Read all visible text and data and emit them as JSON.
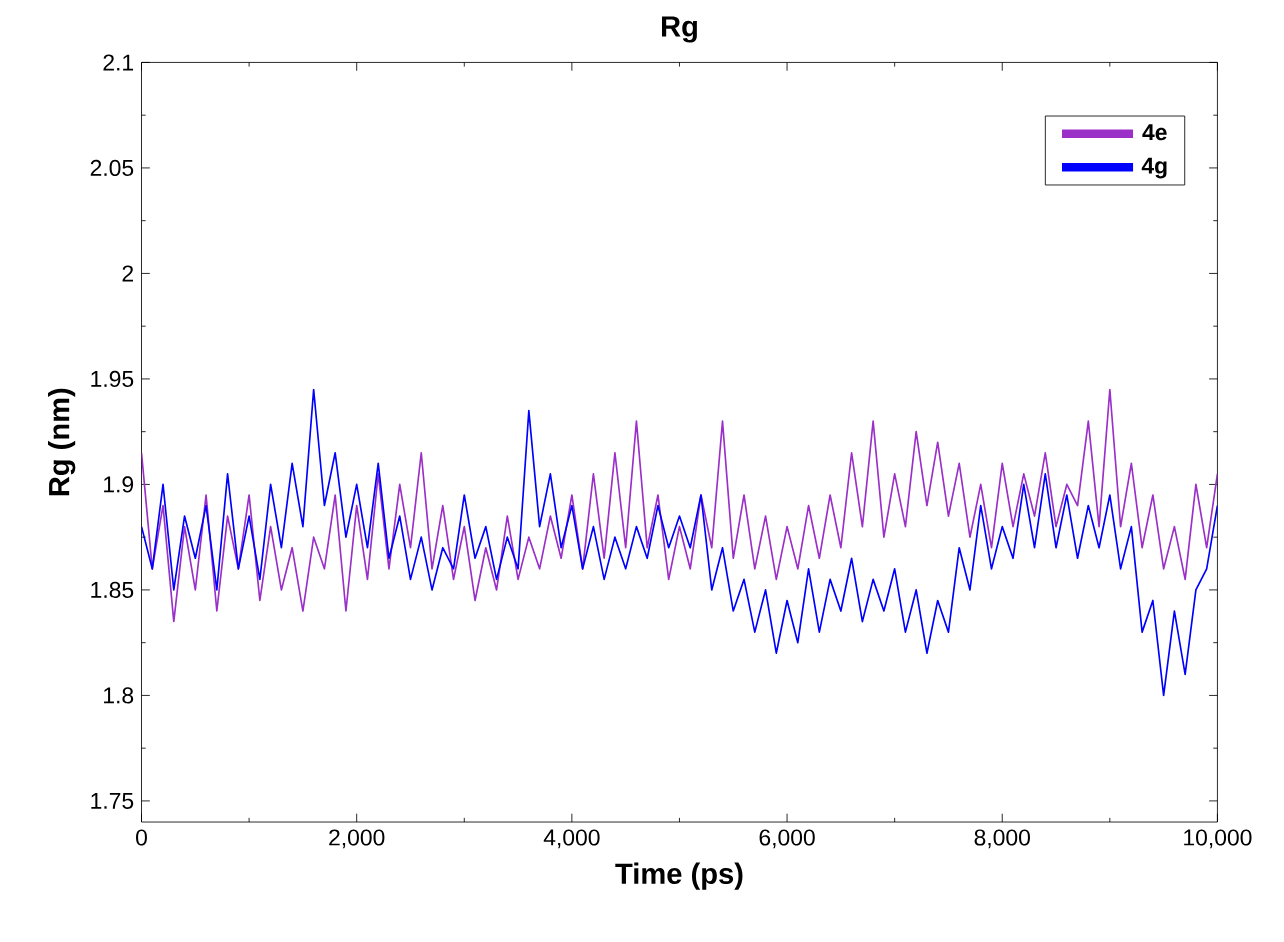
{
  "chart_data": {
    "type": "line",
    "title": "Rg",
    "xlabel": "Time (ps)",
    "ylabel": "Rg (nm)",
    "xlim": [
      0,
      10000
    ],
    "ylim": [
      1.74,
      2.1
    ],
    "xticks": [
      {
        "value": 0,
        "label": "0"
      },
      {
        "value": 2000,
        "label": "2,000"
      },
      {
        "value": 4000,
        "label": "4,000"
      },
      {
        "value": 6000,
        "label": "6,000"
      },
      {
        "value": 8000,
        "label": "8,000"
      },
      {
        "value": 10000,
        "label": "10,000"
      }
    ],
    "yticks": [
      1.75,
      1.8,
      1.85,
      1.9,
      1.95,
      2,
      2.05,
      2.1
    ],
    "legend": "top right",
    "grid": false,
    "x": [
      0,
      100,
      200,
      300,
      400,
      500,
      600,
      700,
      800,
      900,
      1000,
      1100,
      1200,
      1300,
      1400,
      1500,
      1600,
      1700,
      1800,
      1900,
      2000,
      2100,
      2200,
      2300,
      2400,
      2500,
      2600,
      2700,
      2800,
      2900,
      3000,
      3100,
      3200,
      3300,
      3400,
      3500,
      3600,
      3700,
      3800,
      3900,
      4000,
      4100,
      4200,
      4300,
      4400,
      4500,
      4600,
      4700,
      4800,
      4900,
      5000,
      5100,
      5200,
      5300,
      5400,
      5500,
      5600,
      5700,
      5800,
      5900,
      6000,
      6100,
      6200,
      6300,
      6400,
      6500,
      6600,
      6700,
      6800,
      6900,
      7000,
      7100,
      7200,
      7300,
      7400,
      7500,
      7600,
      7700,
      7800,
      7900,
      8000,
      8100,
      8200,
      8300,
      8400,
      8500,
      8600,
      8700,
      8800,
      8900,
      9000,
      9100,
      9200,
      9300,
      9400,
      9500,
      9600,
      9700,
      9800,
      9900,
      10000
    ],
    "series": [
      {
        "name": "4e",
        "color": "#9b30c8",
        "values": [
          1.915,
          1.86,
          1.89,
          1.835,
          1.88,
          1.85,
          1.895,
          1.84,
          1.885,
          1.86,
          1.895,
          1.845,
          1.88,
          1.85,
          1.87,
          1.84,
          1.875,
          1.86,
          1.895,
          1.84,
          1.89,
          1.855,
          1.905,
          1.86,
          1.9,
          1.87,
          1.915,
          1.86,
          1.89,
          1.855,
          1.88,
          1.845,
          1.87,
          1.85,
          1.885,
          1.855,
          1.875,
          1.86,
          1.885,
          1.865,
          1.895,
          1.86,
          1.905,
          1.865,
          1.915,
          1.87,
          1.93,
          1.87,
          1.895,
          1.855,
          1.88,
          1.86,
          1.895,
          1.87,
          1.93,
          1.865,
          1.895,
          1.86,
          1.885,
          1.855,
          1.88,
          1.86,
          1.89,
          1.865,
          1.895,
          1.87,
          1.915,
          1.88,
          1.93,
          1.875,
          1.905,
          1.88,
          1.925,
          1.89,
          1.92,
          1.885,
          1.91,
          1.875,
          1.9,
          1.87,
          1.91,
          1.88,
          1.905,
          1.885,
          1.915,
          1.88,
          1.9,
          1.89,
          1.93,
          1.88,
          1.945,
          1.88,
          1.91,
          1.87,
          1.895,
          1.86,
          1.88,
          1.855,
          1.9,
          1.87,
          1.905
        ]
      },
      {
        "name": "4g",
        "color": "#0000ff",
        "values": [
          1.88,
          1.86,
          1.9,
          1.85,
          1.885,
          1.865,
          1.89,
          1.85,
          1.905,
          1.86,
          1.885,
          1.855,
          1.9,
          1.87,
          1.91,
          1.88,
          1.945,
          1.89,
          1.915,
          1.875,
          1.9,
          1.87,
          1.91,
          1.865,
          1.885,
          1.855,
          1.875,
          1.85,
          1.87,
          1.86,
          1.895,
          1.865,
          1.88,
          1.855,
          1.875,
          1.86,
          1.935,
          1.88,
          1.905,
          1.87,
          1.89,
          1.86,
          1.88,
          1.855,
          1.875,
          1.86,
          1.88,
          1.865,
          1.89,
          1.87,
          1.885,
          1.87,
          1.895,
          1.85,
          1.87,
          1.84,
          1.855,
          1.83,
          1.85,
          1.82,
          1.845,
          1.825,
          1.86,
          1.83,
          1.855,
          1.84,
          1.865,
          1.835,
          1.855,
          1.84,
          1.86,
          1.83,
          1.85,
          1.82,
          1.845,
          1.83,
          1.87,
          1.85,
          1.89,
          1.86,
          1.88,
          1.865,
          1.9,
          1.87,
          1.905,
          1.87,
          1.895,
          1.865,
          1.89,
          1.87,
          1.895,
          1.86,
          1.88,
          1.83,
          1.845,
          1.8,
          1.84,
          1.81,
          1.85,
          1.86,
          1.89
        ]
      }
    ]
  }
}
